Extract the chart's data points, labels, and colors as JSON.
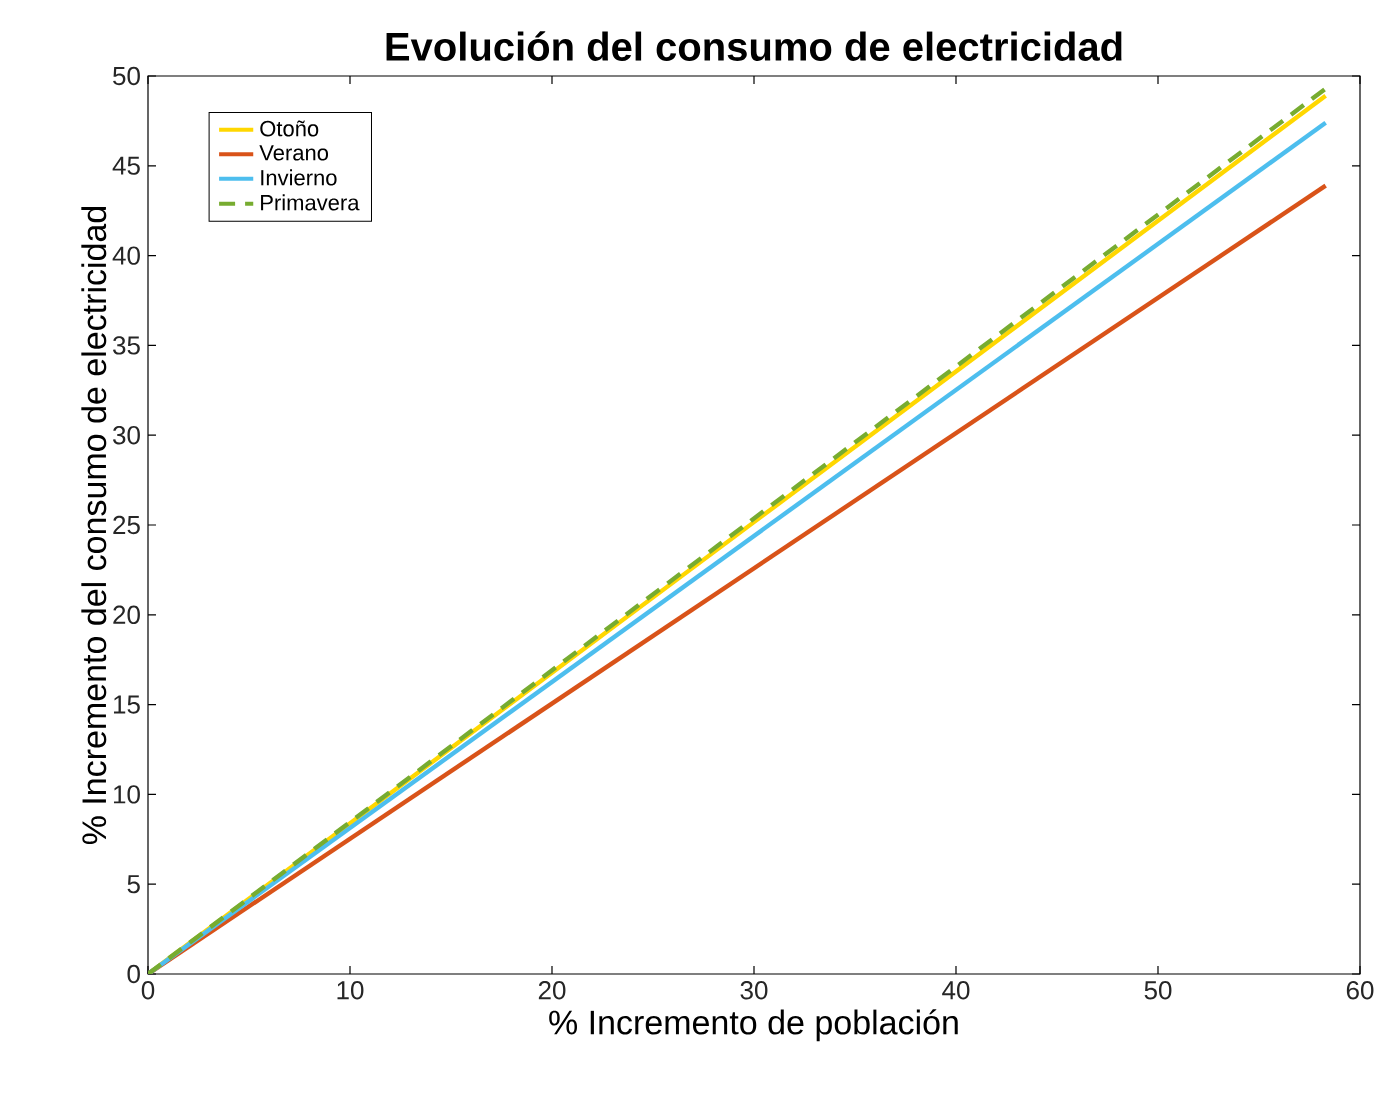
{
  "chart_data": {
    "type": "line",
    "title": "Evolución del consumo de electricidad",
    "xlabel": "% Incremento de población",
    "ylabel": "% Incremento del consumo de electricidad",
    "xlim": [
      0,
      60
    ],
    "ylim": [
      0,
      50
    ],
    "xticks": [
      0,
      10,
      20,
      30,
      40,
      50,
      60
    ],
    "yticks": [
      0,
      5,
      10,
      15,
      20,
      25,
      30,
      35,
      40,
      45,
      50
    ],
    "legend": "top left",
    "grid": false,
    "x": [
      0,
      58.3
    ],
    "series": [
      {
        "name": "Otoño",
        "color": "#ffd700",
        "values": [
          0,
          48.9
        ]
      },
      {
        "name": "Verano",
        "color": "#d95319",
        "values": [
          0,
          43.9
        ]
      },
      {
        "name": "Invierno",
        "color": "#4dbeee",
        "values": [
          0,
          47.4
        ]
      },
      {
        "name": "Primavera",
        "color": "#77ac30",
        "line_style": "dashed",
        "values": [
          0,
          49.3
        ]
      }
    ]
  }
}
